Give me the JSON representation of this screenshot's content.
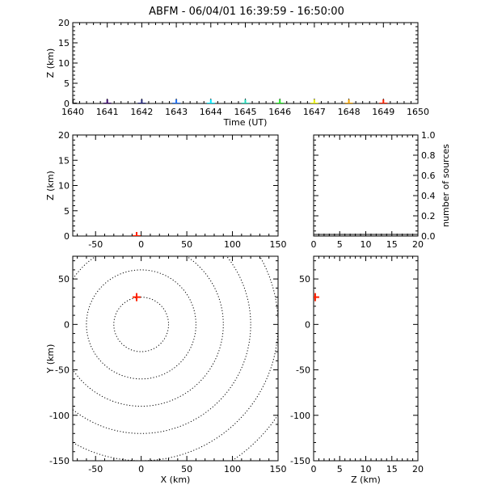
{
  "title": "ABFM - 06/04/01 16:39:59 - 16:50:00",
  "chart_data": [
    {
      "panel": "time-height",
      "type": "scatter",
      "xlabel": "Time (UT)",
      "ylabel": "Z (km)",
      "xlim": [
        1640,
        1650
      ],
      "ylim": [
        0,
        20
      ],
      "xticks": [
        "1640",
        "1641",
        "1642",
        "1643",
        "1644",
        "1645",
        "1646",
        "1647",
        "1648",
        "1649",
        "1650"
      ],
      "yticks": [
        "0",
        "5",
        "10",
        "15",
        "20"
      ],
      "points": [
        {
          "x": 1640,
          "y": 0,
          "color": "#000000"
        },
        {
          "x": 1641,
          "y": 0,
          "color": "#3a0a6a"
        },
        {
          "x": 1642,
          "y": 0,
          "color": "#23287a"
        },
        {
          "x": 1643,
          "y": 0,
          "color": "#1e6ef0"
        },
        {
          "x": 1644,
          "y": 0,
          "color": "#00e5ff"
        },
        {
          "x": 1645,
          "y": 0,
          "color": "#22d8b8"
        },
        {
          "x": 1646,
          "y": 0,
          "color": "#22e022"
        },
        {
          "x": 1647,
          "y": 0,
          "color": "#e6f000"
        },
        {
          "x": 1648,
          "y": 0,
          "color": "#f0a000"
        },
        {
          "x": 1649,
          "y": 0,
          "color": "#ff2000"
        }
      ]
    },
    {
      "panel": "x-height",
      "type": "scatter",
      "xlabel": "",
      "ylabel": "Z (km)",
      "xlim": [
        -75,
        150
      ],
      "ylim": [
        0,
        20
      ],
      "xticks": [
        "-50",
        "0",
        "50",
        "100",
        "150"
      ],
      "yticks": [
        "0",
        "5",
        "10",
        "15",
        "20"
      ],
      "points": [
        {
          "x": -5,
          "y": 0,
          "color": "#ff2000"
        }
      ]
    },
    {
      "panel": "height-histogram",
      "type": "bar",
      "xlabel": "",
      "ylabel": "number of sources",
      "xlim": [
        0,
        20
      ],
      "ylim": [
        0,
        1.0
      ],
      "xticks": [
        "0",
        "5",
        "10",
        "15",
        "20"
      ],
      "yticks": [
        "0.0",
        "0.2",
        "0.4",
        "0.6",
        "0.8",
        "1.0"
      ],
      "values": [
        0
      ]
    },
    {
      "panel": "plan-view",
      "type": "scatter",
      "xlabel": "X (km)",
      "ylabel": "Y (km)",
      "xlim": [
        -75,
        150
      ],
      "ylim": [
        -150,
        75
      ],
      "xticks": [
        "-50",
        "0",
        "50",
        "100",
        "150"
      ],
      "yticks": [
        "50",
        "0",
        "-50",
        "-100",
        "-150"
      ],
      "range_rings_km": [
        30,
        60,
        90,
        120,
        150,
        180
      ],
      "points": [
        {
          "x": -5,
          "y": 30,
          "color": "#ff2000"
        }
      ]
    },
    {
      "panel": "height-y",
      "type": "scatter",
      "xlabel": "Z (km)",
      "ylabel": "",
      "xlim": [
        0,
        20
      ],
      "ylim": [
        -150,
        75
      ],
      "xticks": [
        "0",
        "5",
        "10",
        "15",
        "20"
      ],
      "yticks": [
        "50",
        "0",
        "-50",
        "-100",
        "-150"
      ],
      "points": [
        {
          "x": 0.3,
          "y": 30,
          "color": "#ff2000"
        }
      ]
    }
  ]
}
